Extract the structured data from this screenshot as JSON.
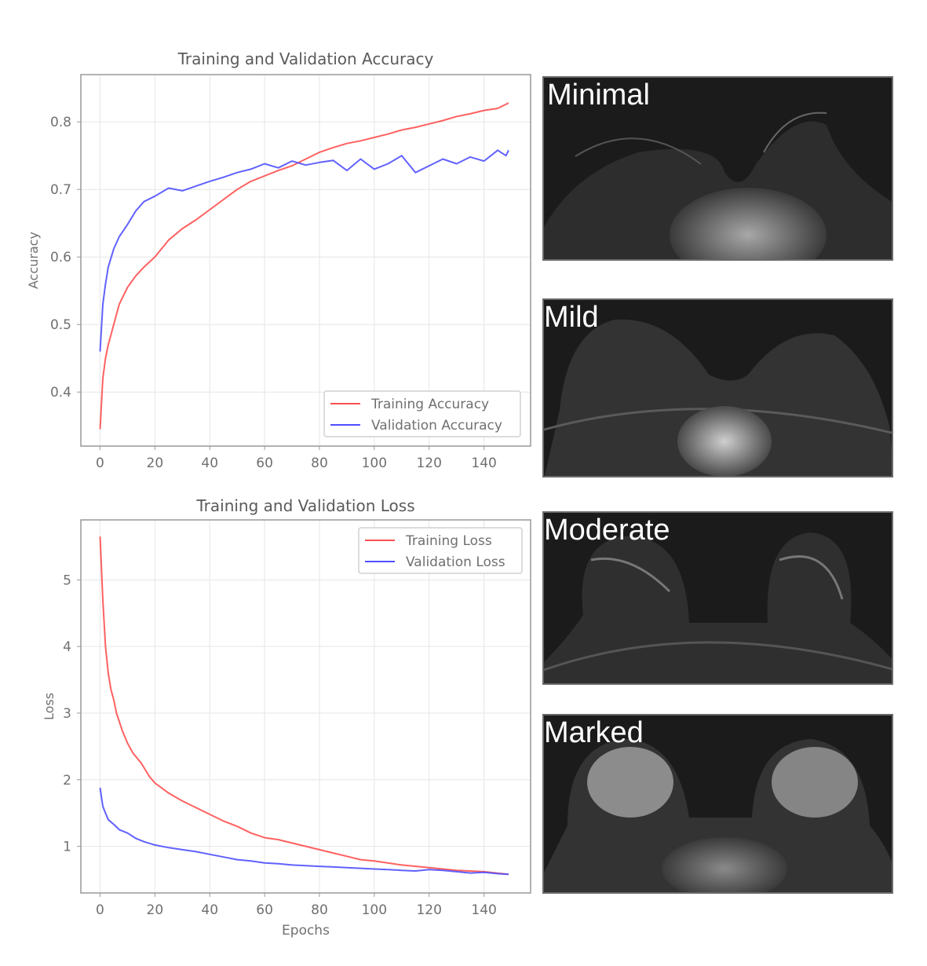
{
  "chart_data": [
    {
      "type": "line",
      "title": "Training and Validation Accuracy",
      "xlabel": "",
      "ylabel": "Accuracy",
      "xlim": [
        -7,
        157
      ],
      "ylim": [
        0.32,
        0.87
      ],
      "xticks": [
        0,
        20,
        40,
        60,
        80,
        100,
        120,
        140
      ],
      "yticks": [
        0.4,
        0.5,
        0.6,
        0.7,
        0.8
      ],
      "grid": true,
      "legend": "lower-right",
      "series": [
        {
          "name": "Training Accuracy",
          "color": "#ff5050",
          "x": [
            0,
            1,
            2,
            3,
            5,
            7,
            10,
            13,
            16,
            20,
            25,
            30,
            35,
            40,
            45,
            50,
            55,
            60,
            65,
            70,
            75,
            80,
            85,
            90,
            95,
            100,
            105,
            110,
            115,
            120,
            125,
            130,
            135,
            140,
            145,
            149
          ],
          "values": [
            0.345,
            0.42,
            0.45,
            0.47,
            0.5,
            0.53,
            0.555,
            0.572,
            0.585,
            0.6,
            0.625,
            0.642,
            0.655,
            0.67,
            0.685,
            0.7,
            0.712,
            0.72,
            0.728,
            0.735,
            0.745,
            0.755,
            0.762,
            0.768,
            0.772,
            0.777,
            0.782,
            0.788,
            0.792,
            0.797,
            0.802,
            0.808,
            0.812,
            0.817,
            0.82,
            0.828
          ]
        },
        {
          "name": "Validation Accuracy",
          "color": "#5050ff",
          "x": [
            0,
            1,
            2,
            3,
            5,
            7,
            10,
            13,
            16,
            20,
            25,
            30,
            35,
            40,
            45,
            50,
            55,
            60,
            65,
            70,
            75,
            80,
            85,
            90,
            95,
            100,
            105,
            110,
            115,
            120,
            125,
            130,
            135,
            140,
            145,
            148,
            149
          ],
          "values": [
            0.46,
            0.53,
            0.56,
            0.585,
            0.612,
            0.63,
            0.648,
            0.668,
            0.682,
            0.69,
            0.702,
            0.698,
            0.705,
            0.712,
            0.718,
            0.725,
            0.73,
            0.738,
            0.732,
            0.742,
            0.736,
            0.74,
            0.743,
            0.728,
            0.745,
            0.73,
            0.738,
            0.75,
            0.725,
            0.735,
            0.745,
            0.738,
            0.748,
            0.742,
            0.758,
            0.75,
            0.758
          ]
        }
      ]
    },
    {
      "type": "line",
      "title": "Training and Validation Loss",
      "xlabel": "Epochs",
      "ylabel": "Loss",
      "xlim": [
        -7,
        157
      ],
      "ylim": [
        0.3,
        5.9
      ],
      "xticks": [
        0,
        20,
        40,
        60,
        80,
        100,
        120,
        140
      ],
      "yticks": [
        1,
        2,
        3,
        4,
        5
      ],
      "grid": true,
      "legend": "upper-right",
      "series": [
        {
          "name": "Training Loss",
          "color": "#ff5050",
          "x": [
            0,
            1,
            2,
            3,
            4,
            5,
            6,
            8,
            10,
            12,
            15,
            18,
            20,
            25,
            30,
            35,
            40,
            45,
            50,
            55,
            60,
            65,
            70,
            75,
            80,
            85,
            90,
            95,
            100,
            110,
            120,
            130,
            140,
            149
          ],
          "values": [
            5.65,
            4.7,
            4.0,
            3.6,
            3.35,
            3.2,
            3.0,
            2.75,
            2.55,
            2.4,
            2.25,
            2.05,
            1.95,
            1.8,
            1.68,
            1.58,
            1.48,
            1.38,
            1.3,
            1.2,
            1.13,
            1.1,
            1.05,
            1.0,
            0.95,
            0.9,
            0.85,
            0.8,
            0.78,
            0.72,
            0.68,
            0.64,
            0.62,
            0.58
          ]
        },
        {
          "name": "Validation Loss",
          "color": "#5050ff",
          "x": [
            0,
            1,
            2,
            3,
            5,
            7,
            10,
            13,
            16,
            20,
            25,
            30,
            35,
            40,
            45,
            50,
            55,
            60,
            65,
            70,
            75,
            80,
            85,
            90,
            95,
            100,
            105,
            110,
            115,
            120,
            125,
            130,
            135,
            140,
            145,
            149
          ],
          "values": [
            1.88,
            1.6,
            1.5,
            1.4,
            1.33,
            1.25,
            1.2,
            1.12,
            1.07,
            1.02,
            0.98,
            0.95,
            0.92,
            0.88,
            0.84,
            0.8,
            0.78,
            0.75,
            0.74,
            0.72,
            0.71,
            0.7,
            0.69,
            0.68,
            0.67,
            0.66,
            0.65,
            0.64,
            0.63,
            0.65,
            0.64,
            0.62,
            0.6,
            0.61,
            0.59,
            0.58
          ]
        }
      ]
    }
  ],
  "panels": {
    "p1": "Minimal",
    "p2": "Mild",
    "p3": "Moderate",
    "p4": "Marked"
  }
}
